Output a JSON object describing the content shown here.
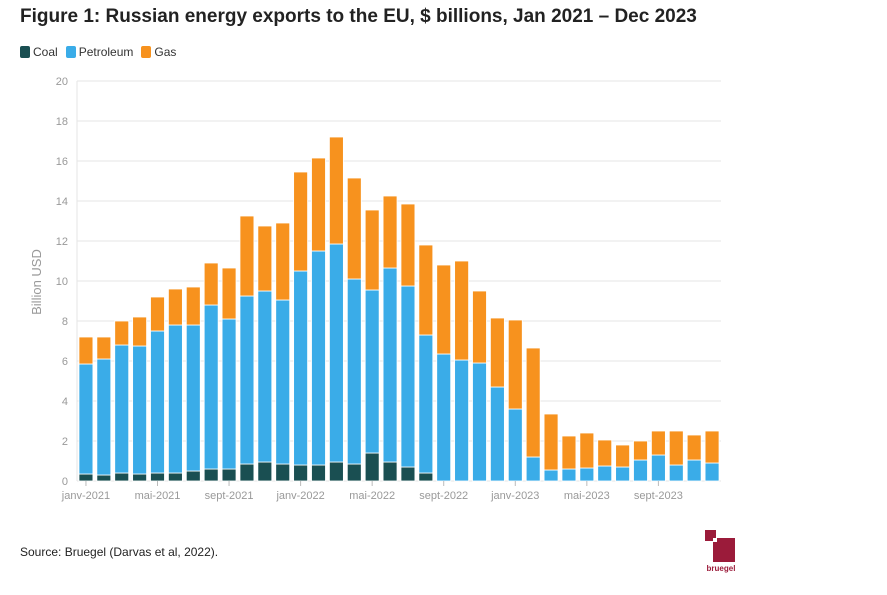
{
  "title": "Figure 1: Russian energy exports to the EU, $ billions, Jan 2021 – Dec 2023",
  "source": "Source: Bruegel (Darvas et al, 2022).",
  "logo_text": "bruegel",
  "colors": {
    "coal": "#1a4f52",
    "petroleum": "#3aace8",
    "gas": "#f7921e",
    "grid": "#e6e6e6",
    "axis_text": "#999999"
  },
  "chart_data": {
    "type": "bar",
    "stacked": true,
    "ylabel": "Billion USD",
    "xlabel": "",
    "ylim": [
      0,
      20
    ],
    "yticks": [
      0,
      2,
      4,
      6,
      8,
      10,
      12,
      14,
      16,
      18,
      20
    ],
    "grid": true,
    "legend_position": "top-left",
    "x_tick_labels": [
      {
        "index": 0,
        "label": "janv-2021"
      },
      {
        "index": 4,
        "label": "mai-2021"
      },
      {
        "index": 8,
        "label": "sept-2021"
      },
      {
        "index": 12,
        "label": "janv-2022"
      },
      {
        "index": 16,
        "label": "mai-2022"
      },
      {
        "index": 20,
        "label": "sept-2022"
      },
      {
        "index": 24,
        "label": "janv-2023"
      },
      {
        "index": 28,
        "label": "mai-2023"
      },
      {
        "index": 32,
        "label": "sept-2023"
      }
    ],
    "categories": [
      "2021-01",
      "2021-02",
      "2021-03",
      "2021-04",
      "2021-05",
      "2021-06",
      "2021-07",
      "2021-08",
      "2021-09",
      "2021-10",
      "2021-11",
      "2021-12",
      "2022-01",
      "2022-02",
      "2022-03",
      "2022-04",
      "2022-05",
      "2022-06",
      "2022-07",
      "2022-08",
      "2022-09",
      "2022-10",
      "2022-11",
      "2022-12",
      "2023-01",
      "2023-02",
      "2023-03",
      "2023-04",
      "2023-05",
      "2023-06",
      "2023-07",
      "2023-08",
      "2023-09",
      "2023-10",
      "2023-11",
      "2023-12"
    ],
    "series": [
      {
        "name": "Coal",
        "key": "coal",
        "values": [
          0.35,
          0.3,
          0.4,
          0.35,
          0.4,
          0.4,
          0.5,
          0.6,
          0.6,
          0.85,
          0.95,
          0.85,
          0.8,
          0.8,
          0.95,
          0.85,
          1.4,
          0.95,
          0.7,
          0.4,
          0,
          0,
          0,
          0,
          0,
          0,
          0,
          0,
          0,
          0,
          0,
          0,
          0,
          0,
          0,
          0
        ]
      },
      {
        "name": "Petroleum",
        "key": "petroleum",
        "values": [
          5.5,
          5.8,
          6.4,
          6.4,
          7.1,
          7.4,
          7.3,
          8.2,
          7.5,
          8.4,
          8.55,
          8.2,
          9.7,
          10.7,
          10.9,
          9.25,
          8.15,
          9.7,
          9.05,
          6.9,
          6.35,
          6.05,
          5.9,
          4.7,
          3.6,
          1.2,
          0.55,
          0.6,
          0.65,
          0.75,
          0.7,
          1.05,
          1.3,
          0.8,
          1.05,
          0.9
        ]
      },
      {
        "name": "Gas",
        "key": "gas",
        "values": [
          1.35,
          1.1,
          1.2,
          1.45,
          1.7,
          1.8,
          1.9,
          2.1,
          2.55,
          4.0,
          3.25,
          3.85,
          4.95,
          4.65,
          5.35,
          5.05,
          4.0,
          3.6,
          4.1,
          4.5,
          4.45,
          4.95,
          3.6,
          3.45,
          4.45,
          5.45,
          2.8,
          1.65,
          1.75,
          1.3,
          1.1,
          0.95,
          1.2,
          1.7,
          1.25,
          1.6
        ]
      }
    ]
  }
}
